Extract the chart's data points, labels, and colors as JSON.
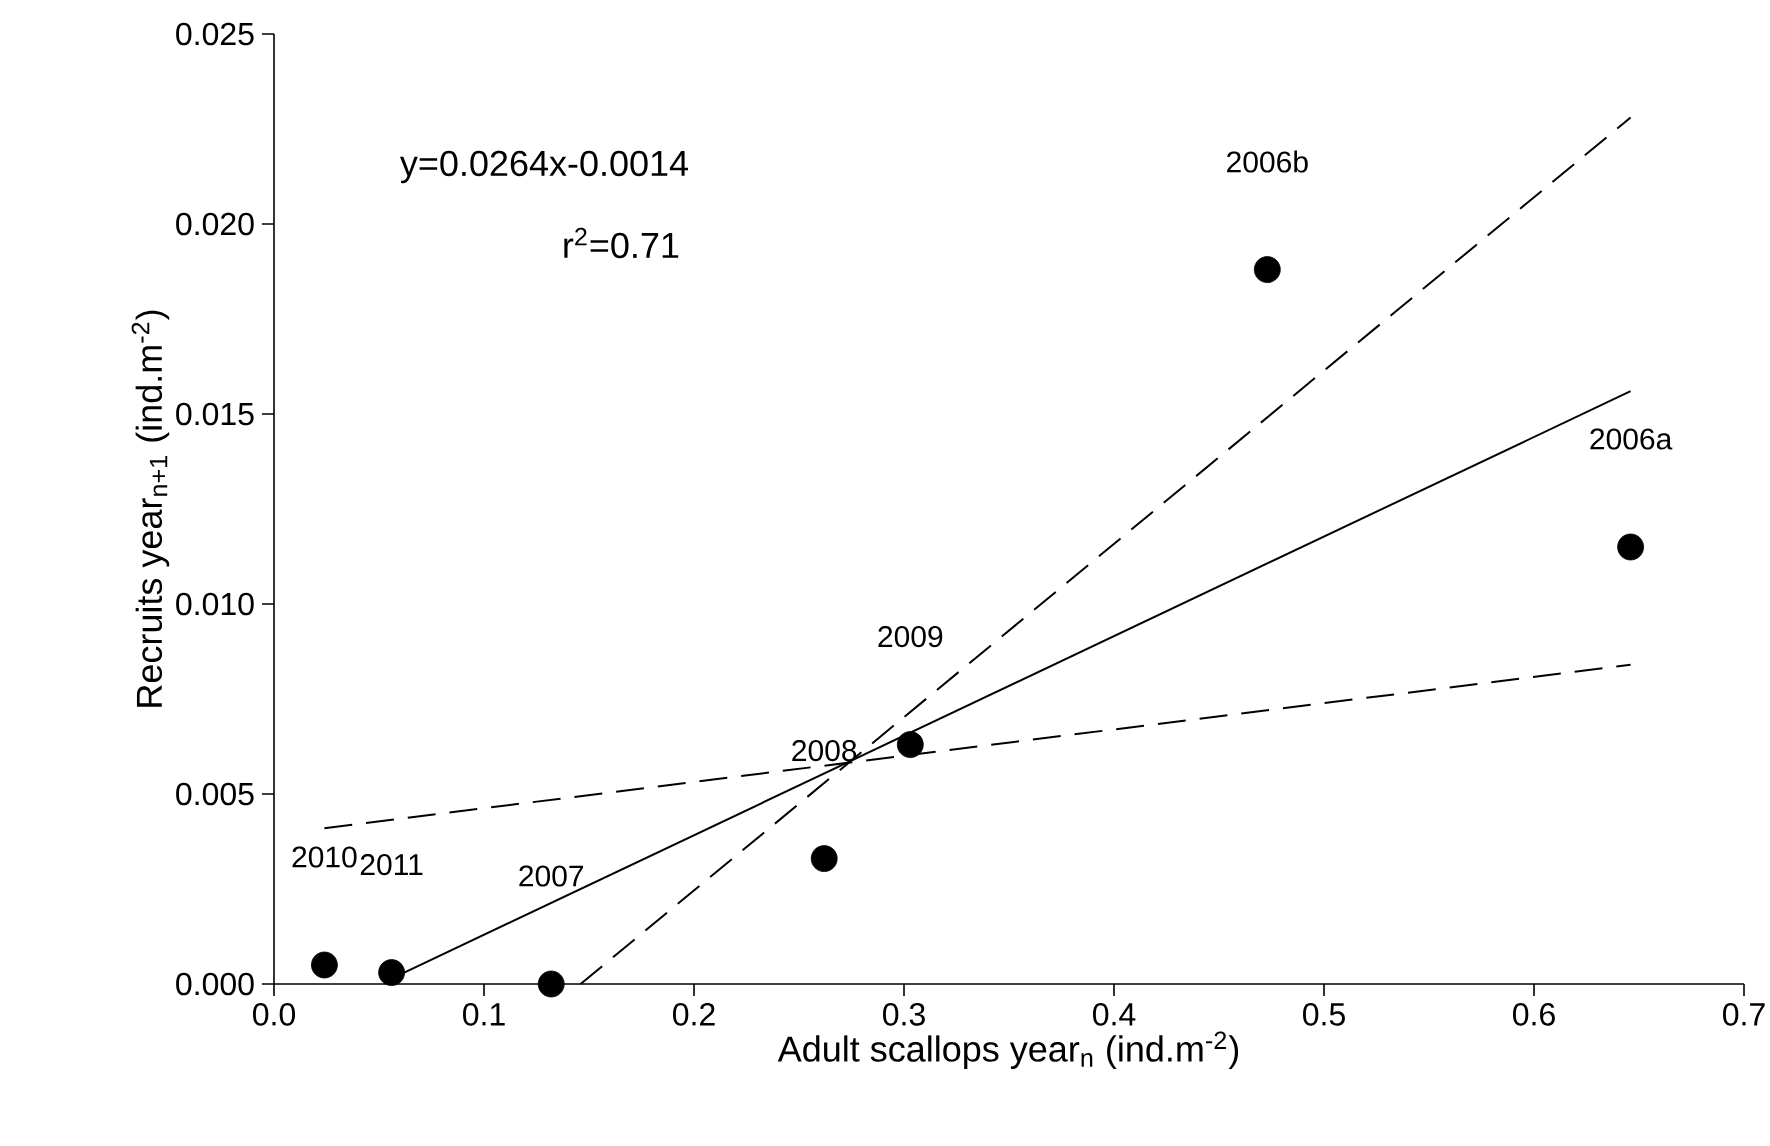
{
  "chart_data": {
    "type": "scatter",
    "xlabel": "Adult scallops year$_{n}$ (ind.m$^{-2}$)",
    "ylabel": "Recruits year$_{n+1}$ (ind.m$^{-2}$)",
    "xlim": [
      0,
      0.7
    ],
    "ylim": [
      0,
      0.025
    ],
    "xticks": [
      {
        "value": 0,
        "label": "0.0"
      },
      0.1,
      0.2,
      0.3,
      0.4,
      0.5,
      0.6,
      0.7
    ],
    "yticks": [
      {
        "value": 0,
        "label": "0.000"
      },
      0.005,
      {
        "value": 0.01,
        "label": "0.010"
      },
      0.015,
      {
        "value": 0.02,
        "label": "0.020"
      },
      0.025
    ],
    "series": [
      {
        "color": "#000000",
        "marker": "circle",
        "x": [
          0.024,
          0.056,
          0.132,
          0.262,
          0.303,
          0.473,
          0.646
        ],
        "values": [
          0.0005,
          0.0003,
          0.0,
          0.0033,
          0.0063,
          0.0188,
          0.0115
        ]
      },
      {
        "type": "line",
        "color": "#000000",
        "marker": "none",
        "line_style": "solid",
        "x": [
          0.062,
          0.646
        ],
        "values": [
          0.0003,
          0.0156
        ]
      },
      {
        "type": "line",
        "color": "#000000",
        "marker": "none",
        "line_style": "dashed",
        "x": [
          0.146,
          0.646
        ],
        "values": [
          0.0,
          0.0228
        ]
      },
      {
        "type": "line",
        "color": "#000000",
        "marker": "none",
        "line_style": "dashed",
        "x": [
          0.024,
          0.646
        ],
        "values": [
          0.0041,
          0.0084
        ]
      }
    ],
    "annotations": [
      "y=0.0264x-0.0014",
      "r$^{2}$=0.71",
      "2010",
      "2011",
      "2007",
      "2008",
      "2009",
      "2006b",
      "2006a"
    ]
  }
}
